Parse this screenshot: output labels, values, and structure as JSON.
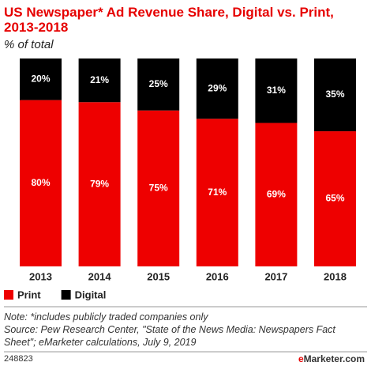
{
  "chart_data": {
    "type": "stacked_bar",
    "title": "US Newspaper* Ad Revenue Share, Digital vs. Print, 2013-2018",
    "subtitle": "% of total",
    "categories": [
      "2013",
      "2014",
      "2015",
      "2016",
      "2017",
      "2018"
    ],
    "series": [
      {
        "name": "Print",
        "color": "#ee0000",
        "values": [
          80,
          79,
          75,
          71,
          69,
          65
        ],
        "value_labels": [
          "80%",
          "79%",
          "75%",
          "71%",
          "69%",
          "65%"
        ]
      },
      {
        "name": "Digital",
        "color": "#000000",
        "values": [
          20,
          21,
          25,
          29,
          31,
          35
        ],
        "value_labels": [
          "20%",
          "21%",
          "25%",
          "29%",
          "31%",
          "35%"
        ]
      }
    ],
    "ylim": [
      0,
      100
    ],
    "legend": "bottom-left",
    "note": "Note: *includes publicly traded companies only",
    "source": "Source: Pew Research Center, \"State of the News Media: Newspapers Fact Sheet\"; eMarketer calculations, July 9, 2019",
    "footer_id": "248823",
    "brand_prefix": "e",
    "brand": "Marketer.com"
  }
}
